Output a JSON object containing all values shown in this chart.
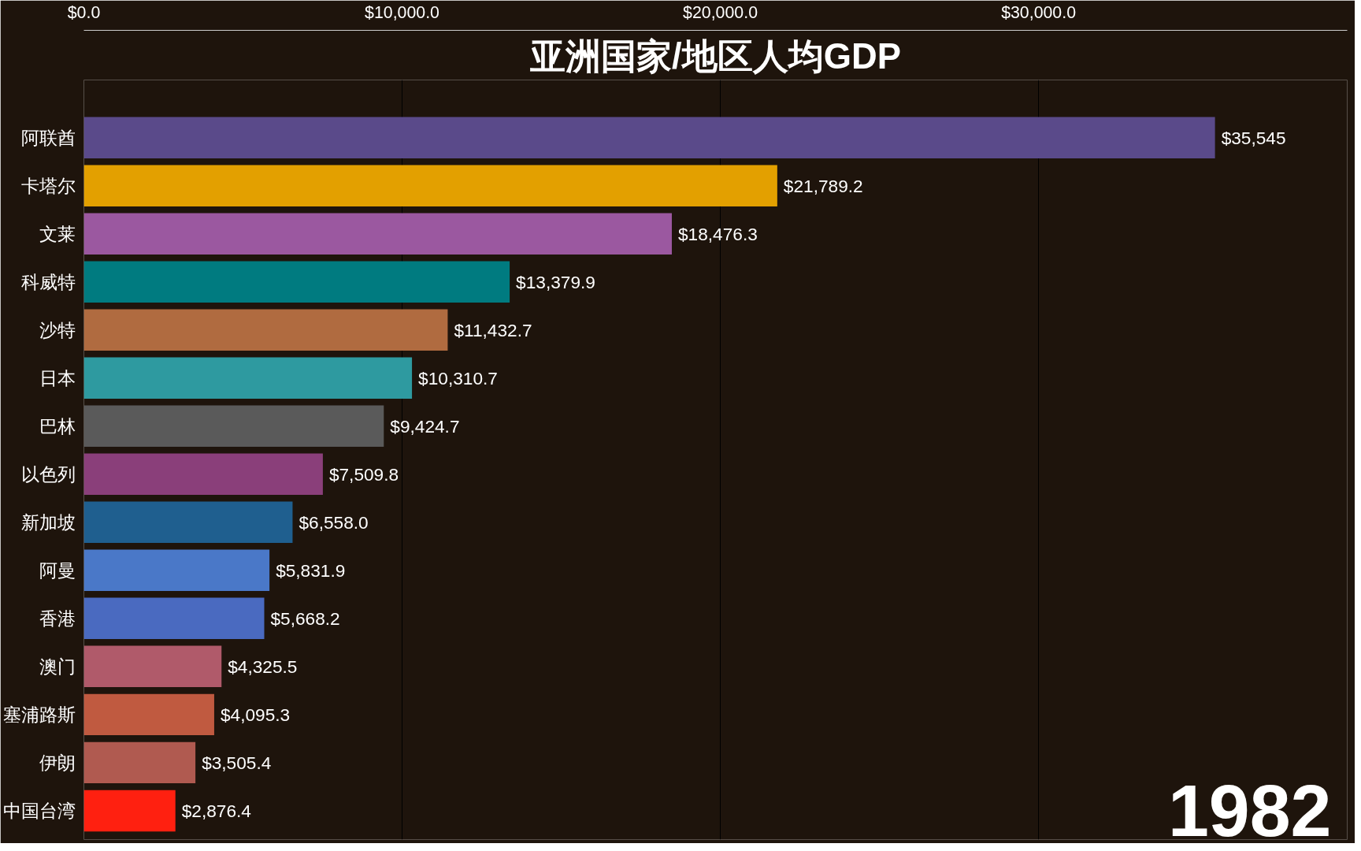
{
  "chart_data": {
    "type": "bar",
    "orientation": "horizontal",
    "title": "亚洲国家/地区人均GDP",
    "categories": [
      "阿联酋",
      "卡塔尔",
      "文莱",
      "科威特",
      "沙特",
      "日本",
      "巴林",
      "以色列",
      "新加坡",
      "阿曼",
      "香港",
      "澳门",
      "塞浦路斯",
      "伊朗",
      "中国台湾"
    ],
    "values": [
      35545,
      21789.2,
      18476.3,
      13379.9,
      11432.7,
      10310.7,
      9424.7,
      7509.8,
      6558.0,
      5831.9,
      5668.2,
      4325.5,
      4095.3,
      3505.4,
      2876.4
    ],
    "value_labels": [
      "$35,545",
      "$21,789.2",
      "$18,476.3",
      "$13,379.9",
      "$11,432.7",
      "$10,310.7",
      "$9,424.7",
      "$7,509.8",
      "$6,558.0",
      "$5,831.9",
      "$5,668.2",
      "$4,325.5",
      "$4,095.3",
      "$3,505.4",
      "$2,876.4"
    ],
    "colors": [
      "#5a4a8a",
      "#e3a000",
      "#9b58a0",
      "#007b80",
      "#b06b40",
      "#2e9aa0",
      "#5a5a5a",
      "#8a3f7a",
      "#1f5f8f",
      "#4a78c8",
      "#4a6ac0",
      "#b05a6a",
      "#c05a40",
      "#b05a50",
      "#ff2010"
    ],
    "xlim": [
      0,
      39700
    ],
    "xticks": [
      {
        "value": 0,
        "label": "$0.0"
      },
      {
        "value": 10000,
        "label": "$10,000.0"
      },
      {
        "value": 20000,
        "label": "$20,000.0"
      },
      {
        "value": 30000,
        "label": "$30,000.0"
      }
    ],
    "grid": "x",
    "annotations": [
      "1982"
    ]
  }
}
